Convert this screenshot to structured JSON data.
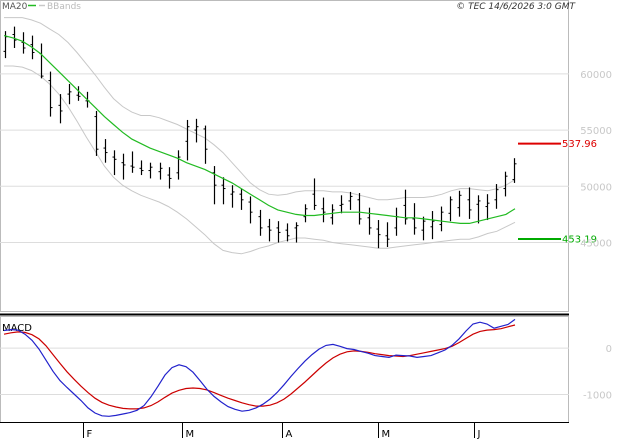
{
  "header": {
    "ma_label": "MA20",
    "bb_label": "BBands",
    "copyright": "© TEC 14/6/2026 3:0 GMT"
  },
  "macd_label": "MACD",
  "colors": {
    "ma": "#22bb22",
    "bbands": "#c8c8c8",
    "resistance": "#dd0000",
    "support": "#00aa00",
    "macd": "#2222cc",
    "signal": "#cc0000",
    "bars": "#000000",
    "grid": "#dddddd",
    "axis_text": "#c8c8c8"
  },
  "chart_data": [
    {
      "type": "ohlc",
      "y_axis": {
        "ticks": [
          45000,
          50000,
          55000,
          60000
        ],
        "tick_labels": [
          "45000",
          "50000",
          "55000",
          "60000"
        ],
        "range": [
          39000,
          65500
        ]
      },
      "x_axis": {
        "month_labels": [
          "F",
          "M",
          "A",
          "M",
          "J"
        ]
      },
      "levels": [
        {
          "label": "537.96",
          "value": 53796
        },
        {
          "label": "453.19",
          "value": 45319
        }
      ],
      "series": [
        {
          "name": "MA20",
          "values": [
            63400,
            63200,
            62900,
            62400,
            61800,
            61000,
            60200,
            59400,
            58600,
            57800,
            57000,
            56200,
            55500,
            54800,
            54200,
            53800,
            53400,
            53100,
            52800,
            52500,
            52100,
            51800,
            51500,
            51100,
            50700,
            50300,
            49800,
            49300,
            48800,
            48300,
            47900,
            47700,
            47500,
            47400,
            47400,
            47500,
            47600,
            47700,
            47700,
            47700,
            47600,
            47500,
            47400,
            47300,
            47200,
            47200,
            47100,
            47000,
            46900,
            46800,
            46700,
            46700,
            46900,
            47100,
            47300,
            47500,
            48000
          ]
        },
        {
          "name": "BBands-upper",
          "values": [
            65000,
            65000,
            65000,
            64800,
            64500,
            64000,
            63500,
            62800,
            61900,
            60900,
            59900,
            58800,
            57800,
            57100,
            56600,
            56300,
            56300,
            56100,
            55800,
            55500,
            55100,
            54700,
            54300,
            53700,
            53000,
            52100,
            51200,
            50300,
            49700,
            49300,
            49200,
            49300,
            49500,
            49600,
            49600,
            49600,
            49500,
            49500,
            49400,
            49200,
            49000,
            48800,
            48800,
            48900,
            49000,
            49000,
            49000,
            49100,
            49300,
            49600,
            49800,
            49800,
            49700,
            49600,
            49800,
            50100,
            50600
          ]
        },
        {
          "name": "BBands-lower",
          "values": [
            60700,
            60700,
            60600,
            60300,
            59800,
            59100,
            58200,
            57100,
            55800,
            54400,
            53100,
            51800,
            50800,
            50100,
            49600,
            49200,
            48900,
            48600,
            48200,
            47700,
            47100,
            46400,
            45700,
            44900,
            44300,
            44100,
            44000,
            44200,
            44500,
            44700,
            45000,
            45200,
            45400,
            45400,
            45300,
            45200,
            45000,
            44900,
            44800,
            44700,
            44600,
            44500,
            44500,
            44600,
            44700,
            44800,
            44900,
            45000,
            45100,
            45200,
            45300,
            45300,
            45500,
            45800,
            46000,
            46400,
            46800
          ]
        },
        {
          "name": "price",
          "ohlc": [
            [
              62000,
              63800,
              61400,
              63300
            ],
            [
              63500,
              64200,
              62300,
              63000
            ],
            [
              62800,
              63700,
              61800,
              62300
            ],
            [
              62600,
              63400,
              61300,
              61900
            ],
            [
              61800,
              62700,
              59600,
              59800
            ],
            [
              59400,
              60200,
              56200,
              57000
            ],
            [
              57200,
              58200,
              55600,
              56700
            ],
            [
              58200,
              59100,
              57300,
              58400
            ],
            [
              58100,
              58900,
              57600,
              58000
            ],
            [
              57600,
              58400,
              57000,
              57600
            ],
            [
              56200,
              56700,
              52700,
              53300
            ],
            [
              53400,
              54200,
              52100,
              53000
            ],
            [
              52600,
              53200,
              51000,
              52400
            ],
            [
              52100,
              52900,
              50600,
              51900
            ],
            [
              51800,
              53100,
              51200,
              51700
            ],
            [
              51600,
              52300,
              51000,
              51400
            ],
            [
              51400,
              52100,
              50700,
              51700
            ],
            [
              51300,
              52100,
              50600,
              51600
            ],
            [
              51000,
              51700,
              49800,
              50700
            ],
            [
              51200,
              53200,
              50600,
              52600
            ],
            [
              54000,
              55900,
              52300,
              55300
            ],
            [
              55000,
              56000,
              53900,
              55300
            ],
            [
              55100,
              55400,
              52000,
              53300
            ],
            [
              51200,
              51800,
              48400,
              50100
            ],
            [
              50100,
              50800,
              48400,
              49800
            ],
            [
              49300,
              50100,
              48100,
              49500
            ],
            [
              49300,
              49800,
              47900,
              48800
            ],
            [
              48600,
              49100,
              46700,
              47700
            ],
            [
              47300,
              47900,
              45600,
              46300
            ],
            [
              46400,
              47100,
              45100,
              46100
            ],
            [
              46300,
              46900,
              45000,
              45900
            ],
            [
              46100,
              46700,
              45100,
              45600
            ],
            [
              46300,
              46800,
              45000,
              46500
            ],
            [
              47300,
              48400,
              46800,
              48000
            ],
            [
              49300,
              50700,
              47900,
              48300
            ],
            [
              48000,
              49000,
              46800,
              47700
            ],
            [
              47200,
              48400,
              46600,
              47900
            ],
            [
              48300,
              49200,
              47600,
              48400
            ],
            [
              48700,
              49500,
              47900,
              49100
            ],
            [
              48800,
              49400,
              46600,
              47100
            ],
            [
              47200,
              48100,
              45700,
              46300
            ],
            [
              46200,
              47000,
              44500,
              45700
            ],
            [
              45600,
              46800,
              44600,
              45300
            ],
            [
              46300,
              48100,
              45600,
              47300
            ],
            [
              48300,
              49700,
              46600,
              47100
            ],
            [
              47100,
              48500,
              45700,
              46300
            ],
            [
              46100,
              47300,
              45200,
              46900
            ],
            [
              46400,
              47800,
              45300,
              46900
            ],
            [
              46600,
              48200,
              46000,
              47700
            ],
            [
              47600,
              49100,
              46900,
              48800
            ],
            [
              48100,
              49600,
              47300,
              49200
            ],
            [
              48800,
              49900,
              47100,
              47900
            ],
            [
              48400,
              49200,
              46700,
              48700
            ],
            [
              48200,
              49300,
              47000,
              48500
            ],
            [
              48800,
              50200,
              48000,
              49700
            ],
            [
              49800,
              51300,
              49100,
              50900
            ],
            [
              50600,
              52500,
              50300,
              52000
            ]
          ]
        }
      ]
    },
    {
      "type": "line",
      "y_axis": {
        "ticks": [
          0,
          -1000
        ],
        "tick_labels": [
          "0",
          "-1000"
        ],
        "range": [
          -1550,
          650
        ]
      },
      "series": [
        {
          "name": "MACD",
          "values": [
            380,
            400,
            390,
            300,
            170,
            -20,
            -260,
            -500,
            -700,
            -850,
            -990,
            -1130,
            -1290,
            -1400,
            -1460,
            -1470,
            -1450,
            -1420,
            -1390,
            -1340,
            -1240,
            -1050,
            -820,
            -580,
            -420,
            -360,
            -400,
            -520,
            -700,
            -890,
            -1040,
            -1160,
            -1260,
            -1320,
            -1360,
            -1340,
            -1290,
            -1210,
            -1100,
            -960,
            -790,
            -610,
            -440,
            -280,
            -140,
            -20,
            60,
            80,
            40,
            -10,
            -30,
            -70,
            -110,
            -160,
            -180,
            -200,
            -150,
            -160,
            -170,
            -200,
            -180,
            -160,
            -100,
            -40,
            60,
            200,
            370,
            520,
            560,
            520,
            430,
            470,
            510,
            620
          ]
        },
        {
          "name": "Signal",
          "values": [
            300,
            330,
            350,
            340,
            290,
            200,
            50,
            -140,
            -330,
            -510,
            -670,
            -820,
            -960,
            -1080,
            -1170,
            -1230,
            -1270,
            -1300,
            -1310,
            -1310,
            -1290,
            -1240,
            -1160,
            -1060,
            -970,
            -910,
            -870,
            -860,
            -870,
            -900,
            -960,
            -1020,
            -1080,
            -1130,
            -1180,
            -1220,
            -1250,
            -1250,
            -1230,
            -1180,
            -1100,
            -990,
            -860,
            -730,
            -590,
            -450,
            -320,
            -210,
            -130,
            -80,
            -60,
            -70,
            -90,
            -120,
            -140,
            -160,
            -170,
            -180,
            -160,
            -130,
            -100,
            -70,
            -40,
            -10,
            40,
            120,
            210,
            300,
            360,
            390,
            400,
            420,
            460,
            500
          ]
        }
      ]
    }
  ]
}
